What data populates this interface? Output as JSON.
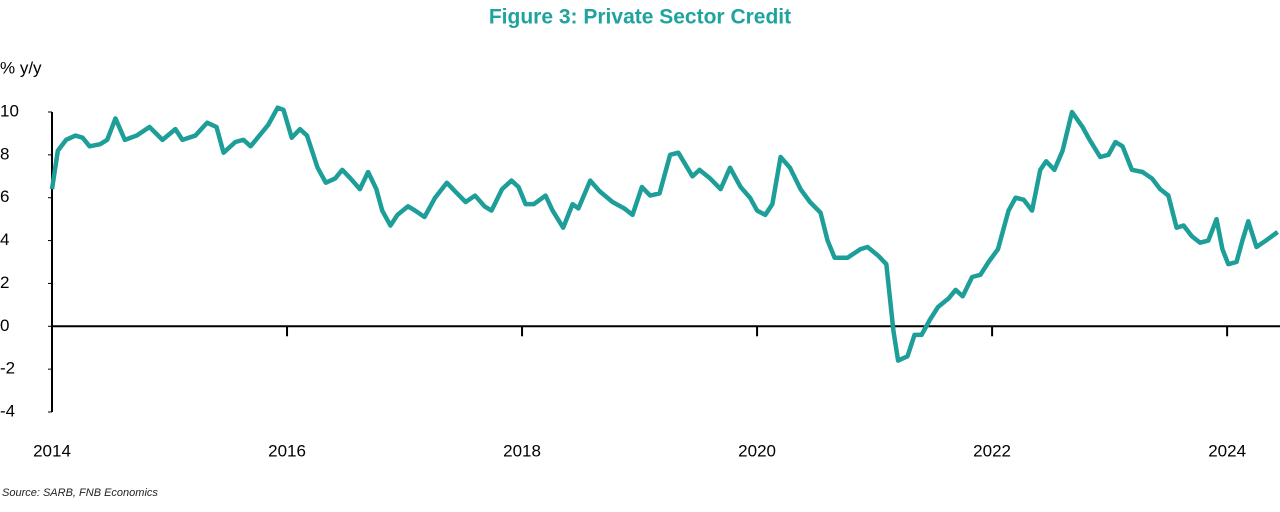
{
  "chart_data": {
    "type": "line",
    "title": "Figure 3: Private Sector Credit",
    "ylabel": "% y/y",
    "source": "Source: SARB, FNB Economics",
    "xlim": [
      2014,
      2024.45
    ],
    "xticks": [
      2014,
      2016,
      2018,
      2020,
      2022,
      2024
    ],
    "ylim": [
      -4,
      10
    ],
    "yticks": [
      10,
      8,
      6,
      4,
      2,
      0,
      -2,
      -4
    ],
    "series": [
      {
        "color": "#1d9e99",
        "x": [
          2014.0,
          2014.05,
          2014.12,
          2014.2,
          2014.26,
          2014.32,
          2014.41,
          2014.47,
          2014.54,
          2014.62,
          2014.72,
          2014.83,
          2014.94,
          2015.05,
          2015.11,
          2015.22,
          2015.32,
          2015.4,
          2015.46,
          2015.56,
          2015.63,
          2015.69,
          2015.75,
          2015.84,
          2015.92,
          2015.97,
          2016.04,
          2016.11,
          2016.17,
          2016.26,
          2016.33,
          2016.41,
          2016.47,
          2016.54,
          2016.62,
          2016.69,
          2016.76,
          2016.81,
          2016.88,
          2016.94,
          2017.03,
          2017.09,
          2017.17,
          2017.26,
          2017.36,
          2017.43,
          2017.52,
          2017.6,
          2017.68,
          2017.74,
          2017.83,
          2017.91,
          2017.97,
          2018.03,
          2018.1,
          2018.2,
          2018.26,
          2018.35,
          2018.43,
          2018.48,
          2018.58,
          2018.66,
          2018.77,
          2018.87,
          2018.94,
          2019.02,
          2019.09,
          2019.17,
          2019.26,
          2019.33,
          2019.45,
          2019.51,
          2019.6,
          2019.69,
          2019.77,
          2019.86,
          2019.94,
          2020.0,
          2020.07,
          2020.13,
          2020.2,
          2020.28,
          2020.37,
          2020.45,
          2020.54,
          2020.6,
          2020.66,
          2020.77,
          2020.88,
          2020.94,
          2021.03,
          2021.1,
          2021.16,
          2021.2,
          2021.28,
          2021.34,
          2021.4,
          2021.47,
          2021.54,
          2021.63,
          2021.69,
          2021.75,
          2021.83,
          2021.9,
          2021.97,
          2022.05,
          2022.14,
          2022.2,
          2022.27,
          2022.34,
          2022.41,
          2022.46,
          2022.53,
          2022.6,
          2022.68,
          2022.77,
          2022.83,
          2022.92,
          2022.99,
          2023.05,
          2023.11,
          2023.19,
          2023.28,
          2023.36,
          2023.43,
          2023.5,
          2023.57,
          2023.63,
          2023.7,
          2023.77,
          2023.84,
          2023.91,
          2023.96,
          2024.01,
          2024.08,
          2024.13,
          2024.18,
          2024.25,
          2024.33,
          2024.43
        ],
        "values": [
          6.4,
          8.2,
          8.7,
          8.9,
          8.8,
          8.4,
          8.5,
          8.7,
          9.7,
          8.7,
          8.9,
          9.3,
          8.7,
          9.2,
          8.7,
          8.9,
          9.5,
          9.3,
          8.1,
          8.6,
          8.7,
          8.4,
          8.8,
          9.4,
          10.2,
          10.1,
          8.8,
          9.2,
          8.9,
          7.4,
          6.7,
          6.9,
          7.3,
          6.9,
          6.4,
          7.2,
          6.4,
          5.4,
          4.7,
          5.2,
          5.6,
          5.4,
          5.1,
          6.0,
          6.7,
          6.3,
          5.8,
          6.1,
          5.6,
          5.4,
          6.4,
          6.8,
          6.5,
          5.7,
          5.7,
          6.1,
          5.4,
          4.6,
          5.7,
          5.5,
          6.8,
          6.3,
          5.8,
          5.5,
          5.2,
          6.5,
          6.1,
          6.2,
          8.0,
          8.1,
          7.0,
          7.3,
          6.9,
          6.4,
          7.4,
          6.5,
          6.0,
          5.4,
          5.2,
          5.7,
          7.9,
          7.4,
          6.4,
          5.8,
          5.3,
          4.0,
          3.2,
          3.2,
          3.6,
          3.7,
          3.3,
          2.9,
          -0.2,
          -1.6,
          -1.4,
          -0.4,
          -0.4,
          0.3,
          0.9,
          1.3,
          1.7,
          1.4,
          2.3,
          2.4,
          3.0,
          3.6,
          5.4,
          6.0,
          5.9,
          5.4,
          7.3,
          7.7,
          7.3,
          8.2,
          10.0,
          9.3,
          8.7,
          7.9,
          8.0,
          8.6,
          8.4,
          7.3,
          7.2,
          6.9,
          6.4,
          6.1,
          4.6,
          4.7,
          4.2,
          3.9,
          4.0,
          5.0,
          3.6,
          2.9,
          3.0,
          4.0,
          4.9,
          3.7,
          4.0,
          4.4
        ]
      }
    ]
  }
}
